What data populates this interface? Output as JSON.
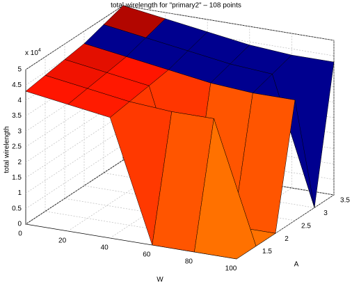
{
  "chart_data": {
    "type": "surface",
    "title": "total wirelength for \"primary2\" – 108 points",
    "xlabel": "W",
    "ylabel": "A",
    "zlabel": "total wirelength",
    "zscale_base": "x 10",
    "zscale_power": "4",
    "x": [
      0,
      20,
      40,
      60,
      80,
      100
    ],
    "y": [
      1,
      1.5,
      2,
      2.5,
      3,
      3.5
    ],
    "z": [
      [
        4.3,
        4.1,
        3.9,
        0,
        0,
        0
      ],
      [
        4.4,
        4.2,
        4.0,
        3.9,
        3.9,
        0
      ],
      [
        4.5,
        4.3,
        4.1,
        0,
        0,
        0
      ],
      [
        4.6,
        4.4,
        4.2,
        4.0,
        3.9,
        3.9
      ],
      [
        4.8,
        4.6,
        4.4,
        4.2,
        4.1,
        0
      ],
      [
        5.0,
        4.8,
        4.6,
        4.4,
        4.3,
        4.3
      ]
    ],
    "xlim": [
      0,
      100
    ],
    "ylim": [
      1,
      3.5
    ],
    "zlim": [
      0,
      5
    ],
    "xticks": [
      0,
      20,
      40,
      60,
      80,
      100
    ],
    "yticks": [
      1.5,
      2,
      2.5,
      3,
      3.5
    ],
    "zticks": [
      0,
      0.5,
      1,
      1.5,
      2,
      2.5,
      3,
      3.5,
      4,
      4.5,
      5
    ],
    "grid": true
  }
}
